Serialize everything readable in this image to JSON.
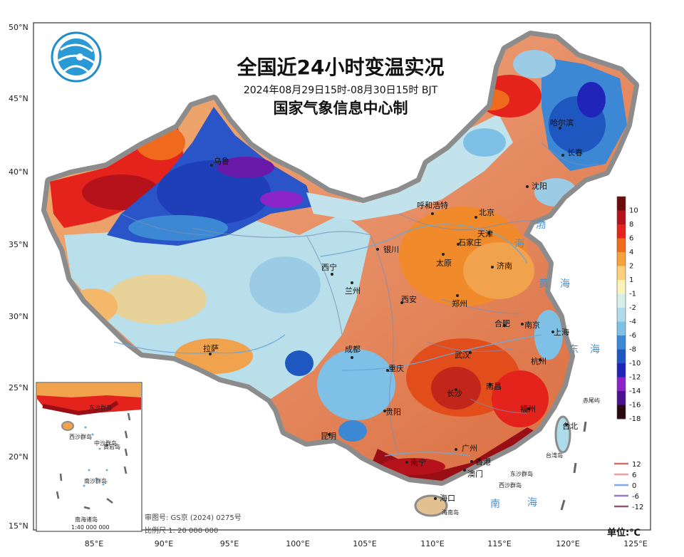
{
  "title": "全国近24小时变温实况",
  "time_range": "2024年08月29日15时-08月30日15时 BJT",
  "producer": "国家气象信息中心制",
  "lat_ticks": [
    "50°N",
    "45°N",
    "40°N",
    "35°N",
    "30°N",
    "25°N",
    "20°N",
    "15°N"
  ],
  "lon_ticks": [
    "85°E",
    "90°E",
    "95°E",
    "100°E",
    "105°E",
    "110°E",
    "115°E",
    "120°E",
    "125°E"
  ],
  "cities": [
    "乌鲁",
    "哈尔滨",
    "长春",
    "沈阳",
    "呼和浩特",
    "北京",
    "天津",
    "石家庄",
    "银川",
    "西宁",
    "太原",
    "济南",
    "兰州",
    "郑州",
    "西安",
    "合肥",
    "南京",
    "上海",
    "成都",
    "拉萨",
    "武汉",
    "杭州",
    "重庆",
    "长沙",
    "南昌",
    "福州",
    "贵阳",
    "台北",
    "昆明",
    "广州",
    "南宁",
    "香港",
    "澳门",
    "海口"
  ],
  "seas": [
    "渤",
    "海",
    "黄",
    "海",
    "东",
    "海",
    "南",
    "海"
  ],
  "islands": [
    "赤尾屿",
    "台湾岛",
    "东沙群岛",
    "西沙群岛",
    "海南岛"
  ],
  "inset": {
    "title": "南海诸岛",
    "scale": "1:40 000 000",
    "labels": [
      "西沙群岛",
      "中沙群岛",
      "东沙群岛",
      "南沙群岛",
      "黄岩岛"
    ]
  },
  "colorbar": {
    "labels": [
      "10",
      "8",
      "6",
      "4",
      "2",
      "1",
      "-1",
      "-2",
      "-4",
      "-6",
      "-8",
      "-10",
      "-12",
      "-14",
      "-16",
      "-18"
    ],
    "colors": [
      "#6e0c0c",
      "#b5121b",
      "#e3231c",
      "#f06a1d",
      "#f7a13a",
      "#fbd07a",
      "#fbf2b8",
      "#d6efe9",
      "#aedbea",
      "#7ec0e6",
      "#3d88d4",
      "#1f57c0",
      "#2024b8",
      "#8a24c9",
      "#4a1290",
      "#2a0a10"
    ]
  },
  "contour_legend": {
    "labels": [
      "12",
      "6",
      "0",
      "-6",
      "-12"
    ],
    "colors": [
      "#d27070",
      "#f0a0a0",
      "#7fa6ec",
      "#9b78c8",
      "#8a5a78"
    ]
  },
  "approval": "审图号: GS京 (2024) 0275号",
  "scale": "比例尺 1: 20 000 000",
  "unit": "单位:℃"
}
